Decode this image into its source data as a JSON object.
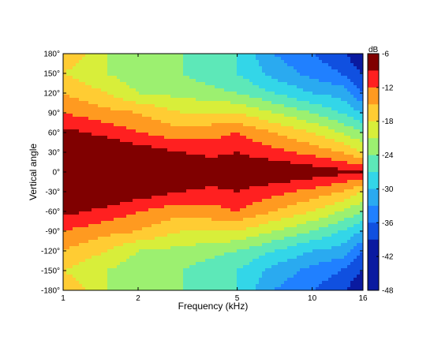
{
  "chart_data": {
    "type": "heatmap",
    "xlabel": "Frequency (kHz)",
    "ylabel": "Vertical angle",
    "xscale": "log",
    "xlim": [
      1,
      16
    ],
    "ylim": [
      -180,
      180
    ],
    "xticks": [
      1,
      2,
      5,
      10,
      16
    ],
    "xtick_labels": [
      "1",
      "2",
      "5",
      "10",
      "16"
    ],
    "yticks": [
      180,
      150,
      120,
      90,
      60,
      30,
      0,
      -30,
      -60,
      -90,
      -120,
      -150,
      -180
    ],
    "ytick_labels": [
      "180°",
      "150°",
      "120°",
      "90°",
      "60°",
      "30°",
      "0°",
      "-30°",
      "-60°",
      "-90°",
      "-120°",
      "-150°",
      "-180°"
    ],
    "colorbar": {
      "label": "dB",
      "range": [
        -48,
        -6
      ],
      "ticks": [
        -6,
        -12,
        -18,
        -24,
        -30,
        -36,
        -42,
        -48
      ],
      "tick_labels": [
        "-6",
        "-12",
        "-18",
        "-24",
        "-30",
        "-36",
        "-42",
        "-48"
      ],
      "levels": [
        {
          "from": -9,
          "to": -6,
          "color": "#800000"
        },
        {
          "from": -12,
          "to": -9,
          "color": "#ff2020"
        },
        {
          "from": -15,
          "to": -12,
          "color": "#ff9a20"
        },
        {
          "from": -18,
          "to": -15,
          "color": "#ffcc33"
        },
        {
          "from": -21,
          "to": -18,
          "color": "#d8ee3a"
        },
        {
          "from": -24,
          "to": -21,
          "color": "#9cf070"
        },
        {
          "from": -27,
          "to": -24,
          "color": "#5de8b8"
        },
        {
          "from": -30,
          "to": -27,
          "color": "#33d6e8"
        },
        {
          "from": -33,
          "to": -30,
          "color": "#2aaaf0"
        },
        {
          "from": -36,
          "to": -33,
          "color": "#2080ff"
        },
        {
          "from": -39,
          "to": -36,
          "color": "#1050e0"
        },
        {
          "from": -48,
          "to": -39,
          "color": "#0a1aa0"
        }
      ]
    },
    "contour_rows_note": "",
    "frequencies": [
      1,
      1.5,
      2,
      3,
      4,
      5,
      7,
      10,
      13,
      16
    ],
    "angles": [
      180,
      150,
      120,
      90,
      60,
      30,
      0,
      -30,
      -60,
      -90,
      -120,
      -150,
      -180
    ],
    "values": [
      [
        -15,
        -21,
        -22,
        -24,
        -26,
        -27,
        -33,
        -36,
        -38,
        -42
      ],
      [
        -18,
        -21,
        -23,
        -24,
        -26,
        -27,
        -31,
        -34,
        -36,
        -39
      ],
      [
        -15,
        -18,
        -21,
        -22,
        -23,
        -24,
        -27,
        -30,
        -31,
        -36
      ],
      [
        -12,
        -14,
        -15,
        -18,
        -18,
        -18,
        -21,
        -24,
        -27,
        -30
      ],
      [
        -8,
        -10,
        -12,
        -14,
        -13,
        -12,
        -15,
        -18,
        -21,
        -24
      ],
      [
        -6,
        -6,
        -7,
        -9,
        -10,
        -9,
        -11,
        -13,
        -15,
        -18
      ],
      [
        -6,
        -6,
        -6,
        -6,
        -6,
        -6,
        -6,
        -7,
        -8,
        -9
      ],
      [
        -6,
        -6,
        -7,
        -9,
        -10,
        -9,
        -11,
        -13,
        -15,
        -18
      ],
      [
        -8,
        -10,
        -12,
        -14,
        -13,
        -12,
        -15,
        -18,
        -21,
        -24
      ],
      [
        -12,
        -14,
        -15,
        -18,
        -18,
        -18,
        -21,
        -24,
        -27,
        -30
      ],
      [
        -15,
        -18,
        -21,
        -22,
        -23,
        -24,
        -27,
        -30,
        -31,
        -36
      ],
      [
        -18,
        -21,
        -23,
        -24,
        -26,
        -27,
        -31,
        -34,
        -36,
        -39
      ],
      [
        -15,
        -21,
        -22,
        -24,
        -26,
        -27,
        -33,
        -36,
        -38,
        -42
      ]
    ]
  }
}
